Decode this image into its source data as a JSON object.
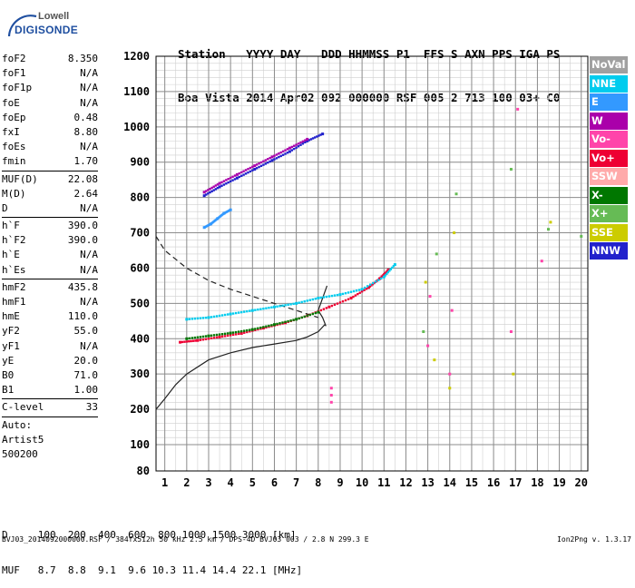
{
  "logo": {
    "line1": "Lowell",
    "line2": "DIGISONDE"
  },
  "header": {
    "line1": "Station   YYYY DAY   DDD HHMMSS P1  FFS S AXN PPS IGA PS",
    "line2": "Boa Vista 2014 Apr02 092 000000 RSF 005 2 713 100 03+ C0"
  },
  "params": {
    "group1": [
      {
        "k": "foF2",
        "v": "8.350"
      },
      {
        "k": "foF1",
        "v": "N/A"
      },
      {
        "k": "foF1p",
        "v": "N/A"
      },
      {
        "k": "foE",
        "v": "N/A"
      },
      {
        "k": "foEp",
        "v": "0.48"
      },
      {
        "k": "fxI",
        "v": "8.80"
      },
      {
        "k": "foEs",
        "v": "N/A"
      },
      {
        "k": "fmin",
        "v": "1.70"
      }
    ],
    "group2": [
      {
        "k": "MUF(D)",
        "v": "22.08"
      },
      {
        "k": "M(D)",
        "v": "2.64"
      },
      {
        "k": "D",
        "v": "N/A"
      }
    ],
    "group3": [
      {
        "k": "h`F",
        "v": "390.0"
      },
      {
        "k": "h`F2",
        "v": "390.0"
      },
      {
        "k": "h`E",
        "v": "N/A"
      },
      {
        "k": "h`Es",
        "v": "N/A"
      }
    ],
    "group4": [
      {
        "k": "hmF2",
        "v": "435.8"
      },
      {
        "k": "hmF1",
        "v": "N/A"
      },
      {
        "k": "hmE",
        "v": "110.0"
      },
      {
        "k": "yF2",
        "v": "55.0"
      },
      {
        "k": "yF1",
        "v": "N/A"
      },
      {
        "k": "yE",
        "v": "20.0"
      },
      {
        "k": "B0",
        "v": "71.0"
      },
      {
        "k": "B1",
        "v": "1.00"
      }
    ],
    "group5": [
      {
        "k": "C-level",
        "v": "33"
      }
    ],
    "auto": [
      "Auto:",
      "Artist5",
      "500200"
    ]
  },
  "legend": [
    {
      "label": "NoVal",
      "color": "#a0a0a0"
    },
    {
      "label": "NNE",
      "color": "#00ccee"
    },
    {
      "label": "E",
      "color": "#3399ff"
    },
    {
      "label": "W",
      "color": "#aa00aa"
    },
    {
      "label": "Vo-",
      "color": "#ff44aa"
    },
    {
      "label": "Vo+",
      "color": "#ee0033"
    },
    {
      "label": "SSW",
      "color": "#ffaaaa"
    },
    {
      "label": "X-",
      "color": "#007700"
    },
    {
      "label": "X+",
      "color": "#66bb55"
    },
    {
      "label": "SSE",
      "color": "#cccc00"
    },
    {
      "label": "NNW",
      "color": "#2222cc"
    }
  ],
  "bottom": {
    "line1": "D     100  200  400  600  800 1000 1500 3000 [km]",
    "line2": "MUF   8.7  8.8  9.1  9.6 10.3 11.4 14.4 22.1 [MHz]"
  },
  "footer": {
    "left": "BVJ03_2014092000000.RSF / 384fx512h 50 kHz 2.5 km / DPS-4D BVJ03 003 / 2.8 N 299.3 E",
    "right": "Ion2Png v. 1.3.17"
  },
  "chart_data": {
    "type": "scatter",
    "xlim": [
      0.6,
      20.3
    ],
    "ylim": [
      80,
      1200
    ],
    "x_ticks": [
      1,
      2,
      3,
      4,
      5,
      6,
      7,
      8,
      9,
      10,
      11,
      12,
      13,
      14,
      15,
      16,
      17,
      18,
      19,
      20
    ],
    "y_ticks": [
      80,
      100,
      200,
      300,
      400,
      500,
      600,
      700,
      800,
      900,
      1000,
      1100,
      1200
    ],
    "x_minor_step": 0.5,
    "y_minor_step": 20,
    "grid": true,
    "series": [
      {
        "name": "NNW",
        "color": "#2222cc",
        "x": [
          2.8,
          3.5,
          4.3,
          5.1,
          5.9,
          6.7,
          7.5,
          8.2
        ],
        "y": [
          805,
          830,
          855,
          880,
          905,
          930,
          960,
          980
        ]
      },
      {
        "name": "W",
        "color": "#aa00aa",
        "x": [
          2.8,
          3.5,
          4.3,
          5.1,
          5.9,
          6.7,
          7.5
        ],
        "y": [
          815,
          840,
          865,
          890,
          915,
          940,
          965
        ]
      },
      {
        "name": "E",
        "color": "#3399ff",
        "x": [
          2.8,
          3.1,
          3.4,
          3.7,
          4.0
        ],
        "y": [
          715,
          725,
          740,
          755,
          765
        ]
      },
      {
        "name": "Vo+",
        "color": "#ee0033",
        "x": [
          1.7,
          2.5,
          3.5,
          4.5,
          5.5,
          6.5,
          7.5,
          8.5,
          9.5,
          10.3,
          10.8,
          11.2
        ],
        "y": [
          390,
          395,
          405,
          415,
          430,
          445,
          465,
          490,
          515,
          545,
          570,
          595
        ]
      },
      {
        "name": "X-",
        "color": "#007700",
        "x": [
          2.0,
          3.0,
          4.0,
          5.0,
          6.0,
          7.0,
          8.0
        ],
        "y": [
          400,
          408,
          416,
          426,
          440,
          455,
          475
        ]
      },
      {
        "name": "NNE",
        "color": "#00ccee",
        "x": [
          2.0,
          3.0,
          4.0,
          5.0,
          6.0,
          7.0,
          8.0,
          9.0,
          10.0,
          11.0,
          11.5
        ],
        "y": [
          455,
          460,
          470,
          480,
          490,
          500,
          515,
          525,
          540,
          575,
          610
        ]
      },
      {
        "name": "Vo-",
        "color": "#ff44aa",
        "x": [
          8.6,
          8.6,
          8.6,
          13.0,
          13.1,
          14.0,
          14.1,
          16.8,
          17.1,
          18.2
        ],
        "y": [
          220,
          240,
          260,
          380,
          520,
          300,
          480,
          420,
          1050,
          620
        ]
      },
      {
        "name": "SSE",
        "color": "#cccc00",
        "x": [
          12.9,
          13.3,
          14.0,
          14.2,
          16.9,
          18.6
        ],
        "y": [
          560,
          340,
          260,
          700,
          300,
          730
        ]
      },
      {
        "name": "X+",
        "color": "#66bb55",
        "x": [
          12.8,
          13.4,
          14.3,
          16.8,
          18.5,
          20.0
        ],
        "y": [
          420,
          640,
          810,
          880,
          710,
          690
        ]
      }
    ],
    "profile_solid": {
      "x": [
        0.6,
        1.0,
        1.5,
        2.0,
        3.0,
        4.0,
        5.0,
        6.0,
        7.0,
        7.5,
        8.0,
        8.3,
        8.35,
        8.2,
        8.0,
        8.4
      ],
      "y": [
        200,
        230,
        270,
        300,
        340,
        360,
        375,
        385,
        395,
        405,
        420,
        440,
        436,
        460,
        480,
        550
      ]
    },
    "profile_dashed": {
      "x": [
        0.6,
        1.0,
        2.0,
        3.0,
        4.0,
        5.0,
        6.0,
        7.0,
        8.0
      ],
      "y": [
        690,
        650,
        600,
        565,
        540,
        520,
        500,
        480,
        460
      ]
    }
  }
}
